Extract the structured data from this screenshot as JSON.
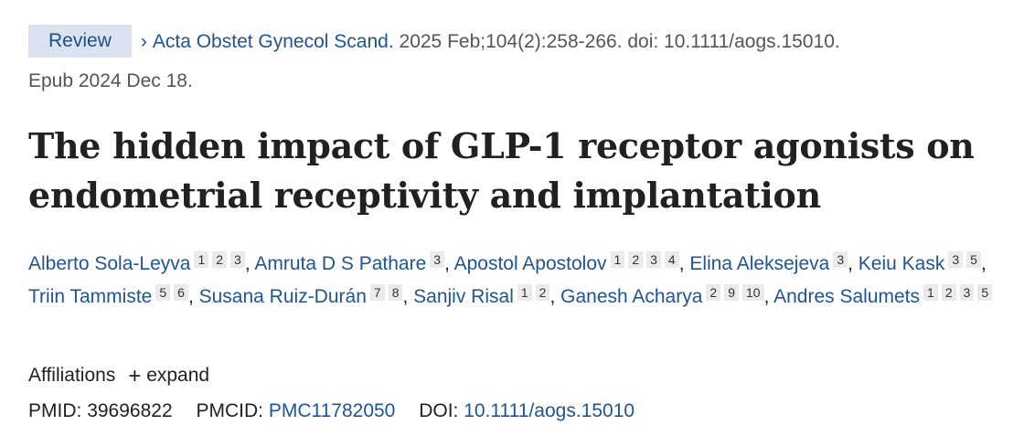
{
  "citation": {
    "badge": "Review",
    "journal": "Acta Obstet Gynecol Scand.",
    "details": "2025 Feb;104(2):258-266. doi: 10.1111/aogs.15010.",
    "epub": "Epub 2024 Dec 18."
  },
  "title": "The hidden impact of GLP-1 receptor agonists on endometrial receptivity and implantation",
  "authors": [
    {
      "name": "Alberto Sola-Leyva",
      "affiliations": [
        "1",
        "2",
        "3"
      ]
    },
    {
      "name": "Amruta D S Pathare",
      "affiliations": [
        "3"
      ]
    },
    {
      "name": "Apostol Apostolov",
      "affiliations": [
        "1",
        "2",
        "3",
        "4"
      ]
    },
    {
      "name": "Elina Aleksejeva",
      "affiliations": [
        "3"
      ]
    },
    {
      "name": "Keiu Kask",
      "affiliations": [
        "3",
        "5"
      ]
    },
    {
      "name": "Triin Tammiste",
      "affiliations": [
        "5",
        "6"
      ]
    },
    {
      "name": "Susana Ruiz-Durán",
      "affiliations": [
        "7",
        "8"
      ]
    },
    {
      "name": "Sanjiv Risal",
      "affiliations": [
        "1",
        "2"
      ]
    },
    {
      "name": "Ganesh Acharya",
      "affiliations": [
        "2",
        "9",
        "10"
      ]
    },
    {
      "name": "Andres Salumets",
      "affiliations": [
        "1",
        "2",
        "3",
        "5"
      ]
    }
  ],
  "affiliations_section": {
    "label": "Affiliations",
    "expand_label": "expand",
    "expand_icon": "plus-icon"
  },
  "identifiers": {
    "pmid_label": "PMID:",
    "pmid": "39696822",
    "pmcid_label": "PMCID:",
    "pmcid": "PMC11782050",
    "doi_label": "DOI:",
    "doi": "10.1111/aogs.15010"
  }
}
